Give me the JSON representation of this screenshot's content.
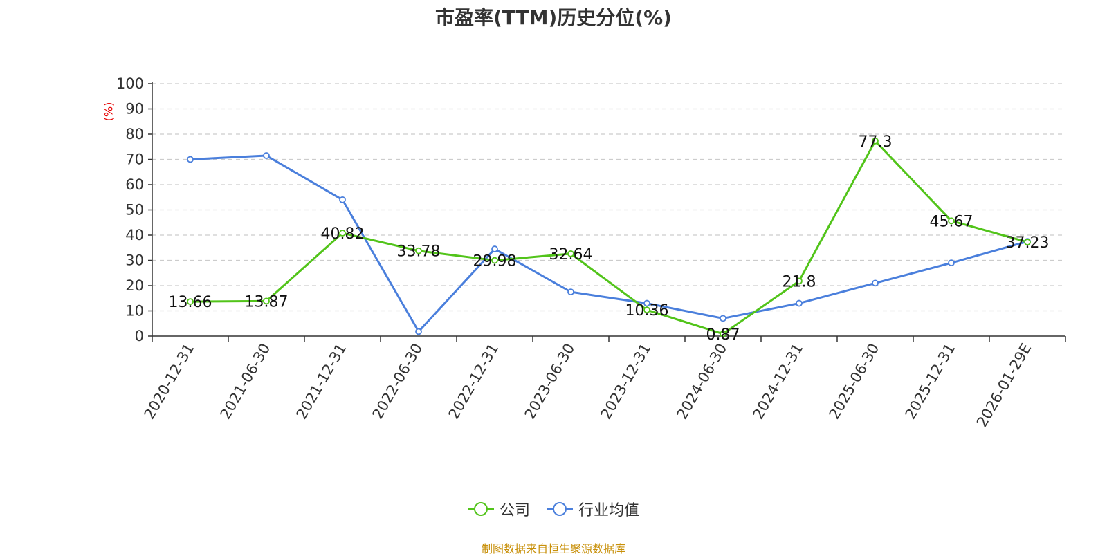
{
  "title": "市盈率(TTM)历史分位(%)",
  "source": "制图数据来自恒生聚源数据库",
  "legend": {
    "company": "公司",
    "industry": "行业均值"
  },
  "chart_data": {
    "type": "line",
    "title": "市盈率(TTM)历史分位(%)",
    "ylabel": "(%)",
    "ylim": [
      0,
      100
    ],
    "yticks": [
      0,
      10,
      20,
      30,
      40,
      50,
      60,
      70,
      80,
      90,
      100
    ],
    "grid": true,
    "legend_position": "bottom",
    "categories": [
      "2020-12-31",
      "2021-06-30",
      "2021-12-31",
      "2022-06-30",
      "2022-12-31",
      "2023-06-30",
      "2023-12-31",
      "2024-06-30",
      "2024-12-31",
      "2025-06-30",
      "2025-12-31",
      "2026-01-29E"
    ],
    "series": [
      {
        "name": "公司",
        "color": "#52c41a",
        "values": [
          13.66,
          13.87,
          40.82,
          33.78,
          29.98,
          32.64,
          10.36,
          0.87,
          21.8,
          77.3,
          45.67,
          37.23
        ],
        "labels": [
          "13.66",
          "13.87",
          "40.82",
          "33.78",
          "29.98",
          "32.64",
          "10.36",
          "0.87",
          "21.8",
          "77.3",
          "45.67",
          "37.23"
        ]
      },
      {
        "name": "行业均值",
        "color": "#4a7fdc",
        "values": [
          70,
          71.5,
          54,
          1.8,
          34.5,
          17.5,
          13,
          7,
          13,
          21,
          29,
          37.5
        ]
      }
    ]
  }
}
